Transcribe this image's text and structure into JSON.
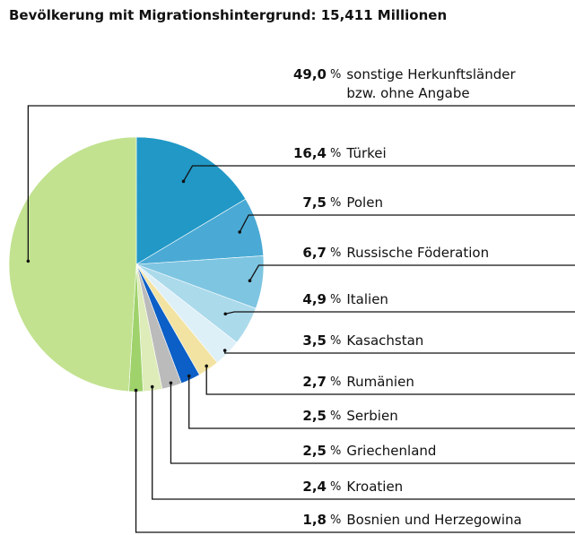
{
  "chart_data": {
    "type": "pie",
    "title": "Bevölkerung mit Migrationshintergrund: 15,411 Millionen",
    "unit": "%",
    "categories": [
      "sonstige Herkunftsländer bzw. ohne Angabe",
      "Türkei",
      "Polen",
      "Russische Föderation",
      "Italien",
      "Kasachstan",
      "Rumänien",
      "Serbien",
      "Griechenland",
      "Kroatien",
      "Bosnien und Herzegowina"
    ],
    "values": [
      49.0,
      16.4,
      7.5,
      6.7,
      4.9,
      3.5,
      2.7,
      2.5,
      2.5,
      2.4,
      1.8
    ],
    "value_labels": [
      "49,0",
      "16,4",
      "7,5",
      "6,7",
      "4,9",
      "3,5",
      "2,7",
      "2,5",
      "2,5",
      "2,4",
      "1,8"
    ],
    "colors": [
      "#c2e290",
      "#2198c6",
      "#4aaad5",
      "#7ec5e1",
      "#abdaeb",
      "#ddeff7",
      "#f3e3a2",
      "#0b5fc6",
      "#bbbbbb",
      "#ddecb8",
      "#9fd26b"
    ]
  }
}
